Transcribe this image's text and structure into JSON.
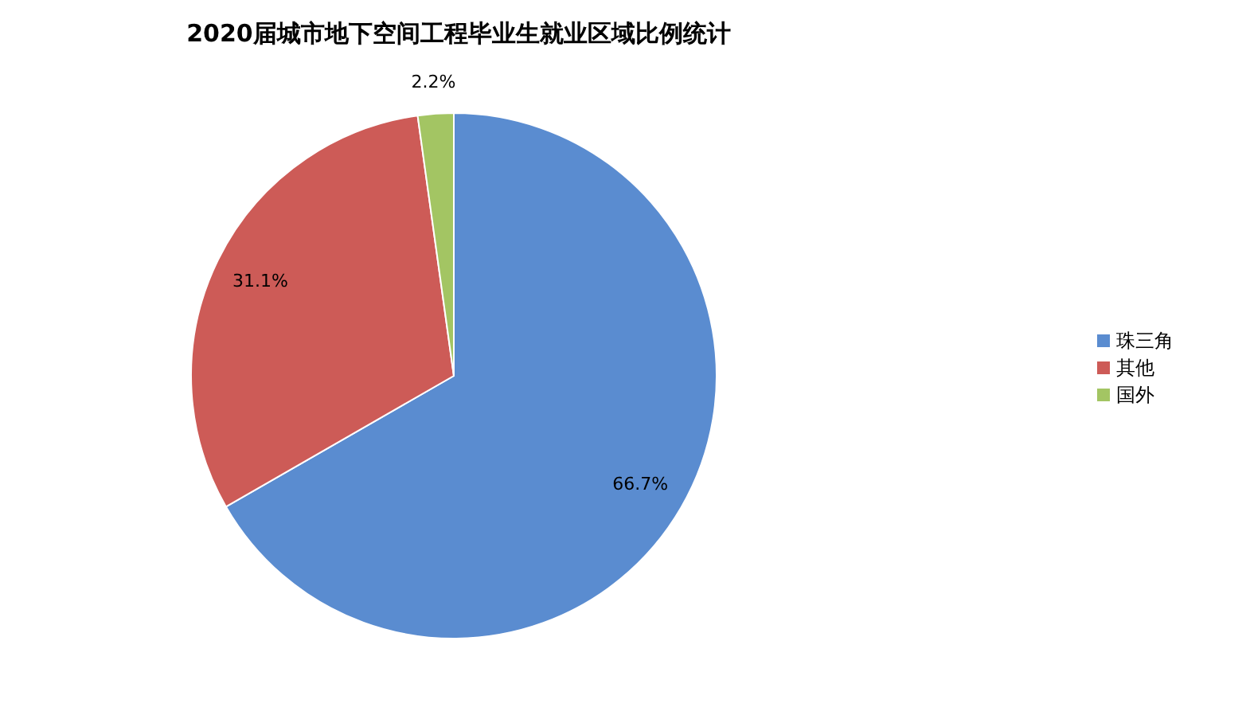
{
  "chart_data": {
    "type": "pie",
    "title": "2020届城市地下空间工程毕业生就业区域比例统计",
    "categories": [
      "珠三角",
      "其他",
      "国外"
    ],
    "values": [
      66.7,
      31.1,
      2.2
    ],
    "colors": [
      "#5a8cd0",
      "#cd5b57",
      "#a3c563"
    ],
    "value_labels": [
      "66.7%",
      "31.1%",
      "2.2%"
    ],
    "legend": "right"
  }
}
